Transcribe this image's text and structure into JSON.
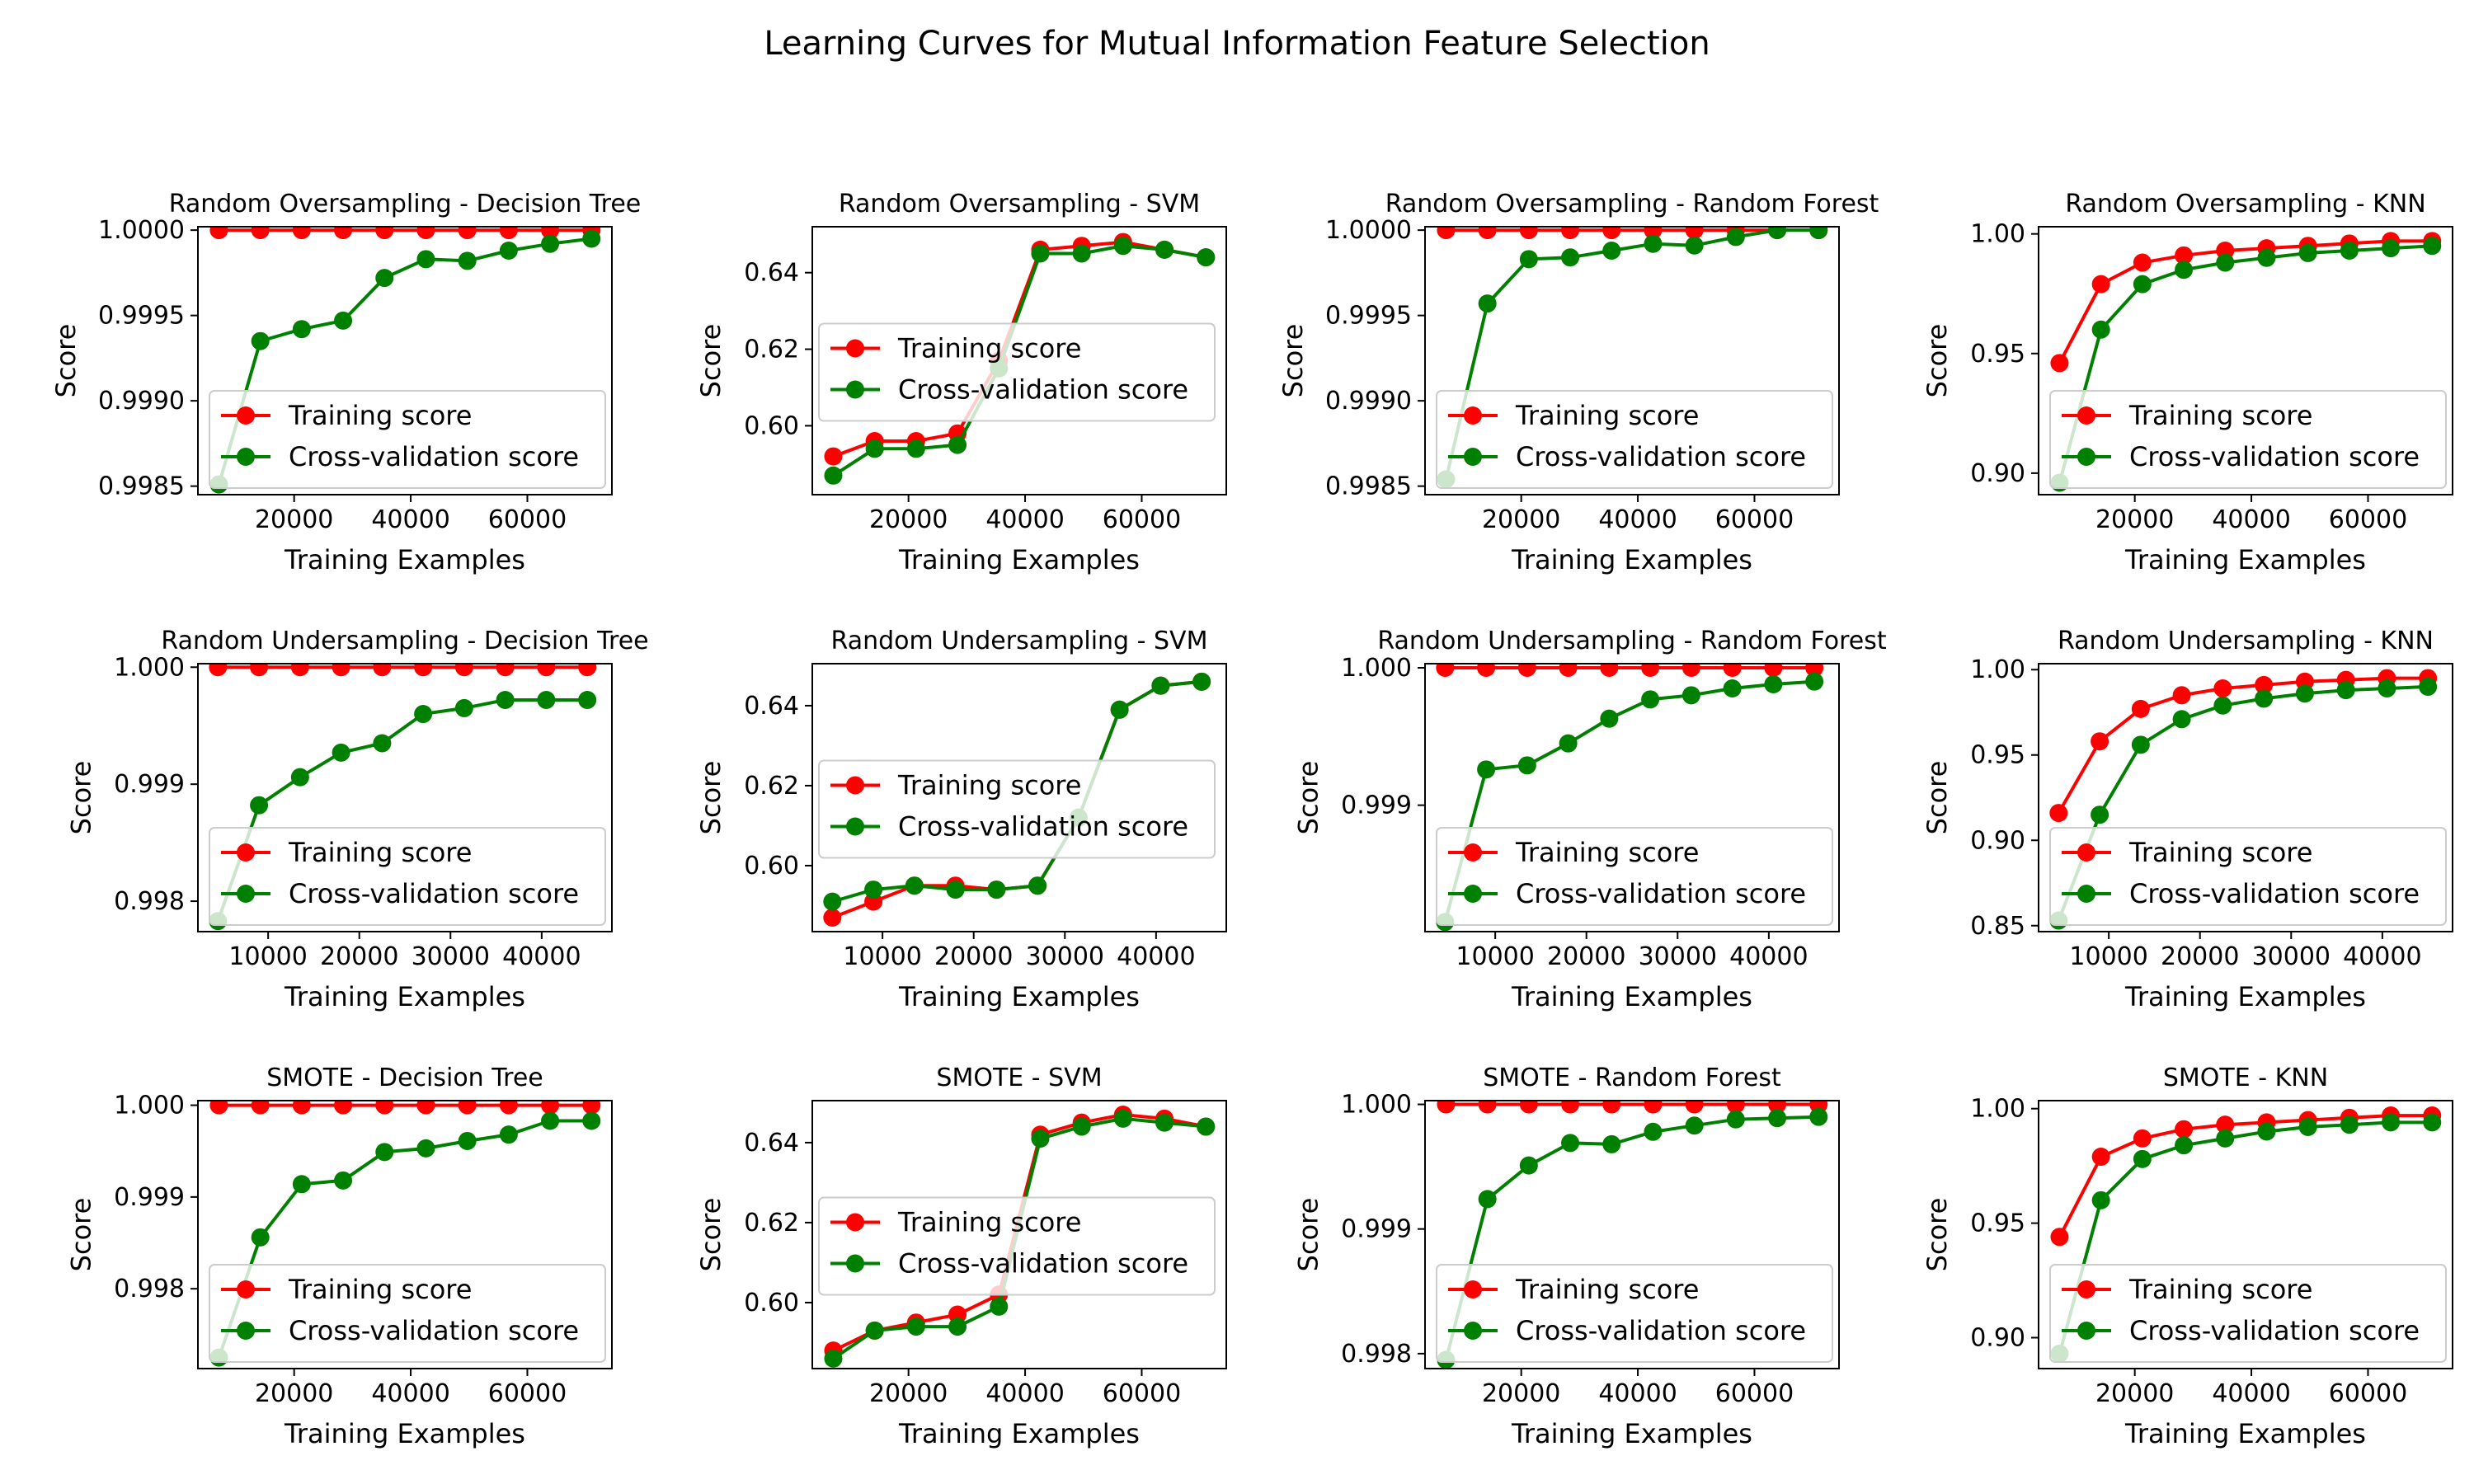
{
  "figure": {
    "title": "Learning Curves for Mutual Information Feature Selection"
  },
  "legend_labels": [
    "Training score",
    "Cross-validation score"
  ],
  "colors": {
    "train": "#ff0000",
    "cv": "#008000"
  },
  "chart_data": [
    {
      "type": "line",
      "title": "Random Oversampling - Decision Tree",
      "xlabel": "Training Examples",
      "ylabel": "Score",
      "xlim": [
        3500,
        74500
      ],
      "ylim": [
        0.99845,
        1.00002
      ],
      "xticks": [
        20000,
        40000,
        60000
      ],
      "xtick_labels": [
        "20000",
        "40000",
        "60000"
      ],
      "yticks": [
        0.9985,
        0.999,
        0.9995,
        1.0
      ],
      "ytick_labels": [
        "0.9985",
        "0.9990",
        "0.9995",
        "1.0000"
      ],
      "legend": "lower-right",
      "grid": false,
      "x": [
        7100,
        14200,
        21300,
        28400,
        35500,
        42600,
        49700,
        56800,
        63900,
        71000
      ],
      "series": [
        {
          "name": "Training score",
          "values": [
            1.0,
            1.0,
            1.0,
            1.0,
            1.0,
            1.0,
            1.0,
            1.0,
            1.0,
            1.0
          ]
        },
        {
          "name": "Cross-validation score",
          "values": [
            0.99851,
            0.99935,
            0.99942,
            0.99947,
            0.99972,
            0.99983,
            0.99982,
            0.99988,
            0.99992,
            0.99995
          ]
        }
      ]
    },
    {
      "type": "line",
      "title": "Random Oversampling - SVM",
      "xlabel": "Training Examples",
      "ylabel": "Score",
      "xlim": [
        3500,
        74500
      ],
      "ylim": [
        0.582,
        0.652
      ],
      "xticks": [
        20000,
        40000,
        60000
      ],
      "xtick_labels": [
        "20000",
        "40000",
        "60000"
      ],
      "yticks": [
        0.6,
        0.62,
        0.64
      ],
      "ytick_labels": [
        "0.60",
        "0.62",
        "0.64"
      ],
      "legend": "center-left",
      "grid": false,
      "x": [
        7100,
        14200,
        21300,
        28400,
        35500,
        42600,
        49700,
        56800,
        63900,
        71000
      ],
      "series": [
        {
          "name": "Training score",
          "values": [
            0.592,
            0.596,
            0.596,
            0.598,
            0.617,
            0.646,
            0.647,
            0.648,
            0.646,
            0.644
          ]
        },
        {
          "name": "Cross-validation score",
          "values": [
            0.587,
            0.594,
            0.594,
            0.595,
            0.615,
            0.645,
            0.645,
            0.647,
            0.646,
            0.644
          ]
        }
      ]
    },
    {
      "type": "line",
      "title": "Random Oversampling - Random Forest",
      "xlabel": "Training Examples",
      "ylabel": "Score",
      "xlim": [
        3500,
        74500
      ],
      "ylim": [
        0.99845,
        1.00002
      ],
      "xticks": [
        20000,
        40000,
        60000
      ],
      "xtick_labels": [
        "20000",
        "40000",
        "60000"
      ],
      "yticks": [
        0.9985,
        0.999,
        0.9995,
        1.0
      ],
      "ytick_labels": [
        "0.9985",
        "0.9990",
        "0.9995",
        "1.0000"
      ],
      "legend": "lower-right",
      "grid": false,
      "x": [
        7100,
        14200,
        21300,
        28400,
        35500,
        42600,
        49700,
        56800,
        63900,
        71000
      ],
      "series": [
        {
          "name": "Training score",
          "values": [
            1.0,
            1.0,
            1.0,
            1.0,
            1.0,
            1.0,
            1.0,
            1.0,
            1.0,
            1.0
          ]
        },
        {
          "name": "Cross-validation score",
          "values": [
            0.99854,
            0.99957,
            0.99983,
            0.99984,
            0.99988,
            0.99992,
            0.99991,
            0.99996,
            1.0,
            1.0
          ]
        }
      ]
    },
    {
      "type": "line",
      "title": "Random Oversampling - KNN",
      "xlabel": "Training Examples",
      "ylabel": "Score",
      "xlim": [
        3500,
        74500
      ],
      "ylim": [
        0.891,
        1.003
      ],
      "xticks": [
        20000,
        40000,
        60000
      ],
      "xtick_labels": [
        "20000",
        "40000",
        "60000"
      ],
      "yticks": [
        0.9,
        0.95,
        1.0
      ],
      "ytick_labels": [
        "0.90",
        "0.95",
        "1.00"
      ],
      "legend": "lower-right",
      "grid": false,
      "x": [
        7100,
        14200,
        21300,
        28400,
        35500,
        42600,
        49700,
        56800,
        63900,
        71000
      ],
      "series": [
        {
          "name": "Training score",
          "values": [
            0.946,
            0.979,
            0.988,
            0.991,
            0.993,
            0.994,
            0.995,
            0.996,
            0.997,
            0.997
          ]
        },
        {
          "name": "Cross-validation score",
          "values": [
            0.896,
            0.96,
            0.979,
            0.985,
            0.988,
            0.99,
            0.992,
            0.993,
            0.994,
            0.995
          ]
        }
      ]
    },
    {
      "type": "line",
      "title": "Random Undersampling - Decision Tree",
      "xlabel": "Training Examples",
      "ylabel": "Score",
      "xlim": [
        2300,
        47700
      ],
      "ylim": [
        0.99774,
        1.00003
      ],
      "xticks": [
        10000,
        20000,
        30000,
        40000
      ],
      "xtick_labels": [
        "10000",
        "20000",
        "30000",
        "40000"
      ],
      "yticks": [
        0.998,
        0.999,
        1.0
      ],
      "ytick_labels": [
        "0.998",
        "0.999",
        "1.000"
      ],
      "legend": "lower-right",
      "grid": false,
      "x": [
        4500,
        9000,
        13500,
        18000,
        22500,
        27000,
        31500,
        36000,
        40500,
        45000
      ],
      "series": [
        {
          "name": "Training score",
          "values": [
            1.0,
            1.0,
            1.0,
            1.0,
            1.0,
            1.0,
            1.0,
            1.0,
            1.0,
            1.0
          ]
        },
        {
          "name": "Cross-validation score",
          "values": [
            0.99783,
            0.99882,
            0.99906,
            0.99927,
            0.99935,
            0.9996,
            0.99965,
            0.99972,
            0.99972,
            0.99972
          ]
        }
      ]
    },
    {
      "type": "line",
      "title": "Random Undersampling - SVM",
      "xlabel": "Training Examples",
      "ylabel": "Score",
      "xlim": [
        2300,
        47700
      ],
      "ylim": [
        0.5835,
        0.6505
      ],
      "xticks": [
        10000,
        20000,
        30000,
        40000
      ],
      "xtick_labels": [
        "10000",
        "20000",
        "30000",
        "40000"
      ],
      "yticks": [
        0.6,
        0.62,
        0.64
      ],
      "ytick_labels": [
        "0.60",
        "0.62",
        "0.64"
      ],
      "legend": "center-left",
      "grid": false,
      "x": [
        4500,
        9000,
        13500,
        18000,
        22500,
        27000,
        31500,
        36000,
        40500,
        45000
      ],
      "series": [
        {
          "name": "Training score",
          "values": [
            0.587,
            0.591,
            0.595,
            0.595,
            0.594,
            0.595,
            0.612,
            0.639,
            0.645,
            0.646
          ]
        },
        {
          "name": "Cross-validation score",
          "values": [
            0.591,
            0.594,
            0.595,
            0.594,
            0.594,
            0.595,
            0.612,
            0.639,
            0.645,
            0.646
          ]
        }
      ]
    },
    {
      "type": "line",
      "title": "Random Undersampling - Random Forest",
      "xlabel": "Training Examples",
      "ylabel": "Score",
      "xlim": [
        2300,
        47700
      ],
      "ylim": [
        0.99808,
        1.00003
      ],
      "xticks": [
        10000,
        20000,
        30000,
        40000
      ],
      "xtick_labels": [
        "10000",
        "20000",
        "30000",
        "40000"
      ],
      "yticks": [
        0.999,
        1.0
      ],
      "ytick_labels": [
        "0.999",
        "1.000"
      ],
      "legend": "lower-right",
      "grid": false,
      "x": [
        4500,
        9000,
        13500,
        18000,
        22500,
        27000,
        31500,
        36000,
        40500,
        45000
      ],
      "series": [
        {
          "name": "Training score",
          "values": [
            1.0,
            1.0,
            1.0,
            1.0,
            1.0,
            1.0,
            1.0,
            1.0,
            1.0,
            1.0
          ]
        },
        {
          "name": "Cross-validation score",
          "values": [
            0.99815,
            0.99926,
            0.99929,
            0.99945,
            0.99963,
            0.99977,
            0.9998,
            0.99985,
            0.99988,
            0.9999
          ]
        }
      ]
    },
    {
      "type": "line",
      "title": "Random Undersampling - KNN",
      "xlabel": "Training Examples",
      "ylabel": "Score",
      "xlim": [
        2300,
        47700
      ],
      "ylim": [
        0.8465,
        1.0035
      ],
      "xticks": [
        10000,
        20000,
        30000,
        40000
      ],
      "xtick_labels": [
        "10000",
        "20000",
        "30000",
        "40000"
      ],
      "yticks": [
        0.85,
        0.9,
        0.95,
        1.0
      ],
      "ytick_labels": [
        "0.85",
        "0.90",
        "0.95",
        "1.00"
      ],
      "legend": "lower-right",
      "grid": false,
      "x": [
        4500,
        9000,
        13500,
        18000,
        22500,
        27000,
        31500,
        36000,
        40500,
        45000
      ],
      "series": [
        {
          "name": "Training score",
          "values": [
            0.916,
            0.958,
            0.977,
            0.985,
            0.989,
            0.991,
            0.993,
            0.994,
            0.995,
            0.995
          ]
        },
        {
          "name": "Cross-validation score",
          "values": [
            0.853,
            0.915,
            0.956,
            0.971,
            0.979,
            0.983,
            0.986,
            0.988,
            0.989,
            0.99
          ]
        }
      ]
    },
    {
      "type": "line",
      "title": "SMOTE - Decision Tree",
      "xlabel": "Training Examples",
      "ylabel": "Score",
      "xlim": [
        3500,
        74500
      ],
      "ylim": [
        0.99713,
        1.00005
      ],
      "xticks": [
        20000,
        40000,
        60000
      ],
      "xtick_labels": [
        "20000",
        "40000",
        "60000"
      ],
      "yticks": [
        0.998,
        0.999,
        1.0
      ],
      "ytick_labels": [
        "0.998",
        "0.999",
        "1.000"
      ],
      "legend": "lower-right",
      "grid": false,
      "x": [
        7100,
        14200,
        21300,
        28400,
        35500,
        42600,
        49700,
        56800,
        63900,
        71000
      ],
      "series": [
        {
          "name": "Training score",
          "values": [
            1.0,
            1.0,
            1.0,
            1.0,
            1.0,
            1.0,
            1.0,
            1.0,
            1.0,
            1.0
          ]
        },
        {
          "name": "Cross-validation score",
          "values": [
            0.99725,
            0.99856,
            0.99914,
            0.99918,
            0.99949,
            0.99953,
            0.99961,
            0.99968,
            0.99983,
            0.99983
          ]
        }
      ]
    },
    {
      "type": "line",
      "title": "SMOTE - SVM",
      "xlabel": "Training Examples",
      "ylabel": "Score",
      "xlim": [
        3500,
        74500
      ],
      "ylim": [
        0.5835,
        0.6505
      ],
      "xticks": [
        20000,
        40000,
        60000
      ],
      "xtick_labels": [
        "20000",
        "40000",
        "60000"
      ],
      "yticks": [
        0.6,
        0.62,
        0.64
      ],
      "ytick_labels": [
        "0.60",
        "0.62",
        "0.64"
      ],
      "legend": "center-left",
      "grid": false,
      "x": [
        7100,
        14200,
        21300,
        28400,
        35500,
        42600,
        49700,
        56800,
        63900,
        71000
      ],
      "series": [
        {
          "name": "Training score",
          "values": [
            0.588,
            0.593,
            0.595,
            0.597,
            0.602,
            0.642,
            0.645,
            0.647,
            0.646,
            0.644
          ]
        },
        {
          "name": "Cross-validation score",
          "values": [
            0.586,
            0.593,
            0.594,
            0.594,
            0.599,
            0.641,
            0.644,
            0.646,
            0.645,
            0.644
          ]
        }
      ]
    },
    {
      "type": "line",
      "title": "SMOTE - Random Forest",
      "xlabel": "Training Examples",
      "ylabel": "Score",
      "xlim": [
        3500,
        74500
      ],
      "ylim": [
        0.99788,
        1.00003
      ],
      "xticks": [
        20000,
        40000,
        60000
      ],
      "xtick_labels": [
        "20000",
        "40000",
        "60000"
      ],
      "yticks": [
        0.998,
        0.999,
        1.0
      ],
      "ytick_labels": [
        "0.998",
        "0.999",
        "1.000"
      ],
      "legend": "lower-right",
      "grid": false,
      "x": [
        7100,
        14200,
        21300,
        28400,
        35500,
        42600,
        49700,
        56800,
        63900,
        71000
      ],
      "series": [
        {
          "name": "Training score",
          "values": [
            1.0,
            1.0,
            1.0,
            1.0,
            1.0,
            1.0,
            1.0,
            1.0,
            1.0,
            1.0
          ]
        },
        {
          "name": "Cross-validation score",
          "values": [
            0.99795,
            0.99924,
            0.99951,
            0.99969,
            0.99968,
            0.99978,
            0.99983,
            0.99988,
            0.99989,
            0.9999
          ]
        }
      ]
    },
    {
      "type": "line",
      "title": "SMOTE - KNN",
      "xlabel": "Training Examples",
      "ylabel": "Score",
      "xlim": [
        3500,
        74500
      ],
      "ylim": [
        0.8865,
        1.0035
      ],
      "xticks": [
        20000,
        40000,
        60000
      ],
      "xtick_labels": [
        "20000",
        "40000",
        "60000"
      ],
      "yticks": [
        0.9,
        0.95,
        1.0
      ],
      "ytick_labels": [
        "0.90",
        "0.95",
        "1.00"
      ],
      "legend": "lower-right",
      "grid": false,
      "x": [
        7100,
        14200,
        21300,
        28400,
        35500,
        42600,
        49700,
        56800,
        63900,
        71000
      ],
      "series": [
        {
          "name": "Training score",
          "values": [
            0.944,
            0.979,
            0.987,
            0.991,
            0.993,
            0.994,
            0.995,
            0.996,
            0.997,
            0.997
          ]
        },
        {
          "name": "Cross-validation score",
          "values": [
            0.893,
            0.96,
            0.978,
            0.984,
            0.987,
            0.99,
            0.992,
            0.993,
            0.994,
            0.994
          ]
        }
      ]
    }
  ]
}
